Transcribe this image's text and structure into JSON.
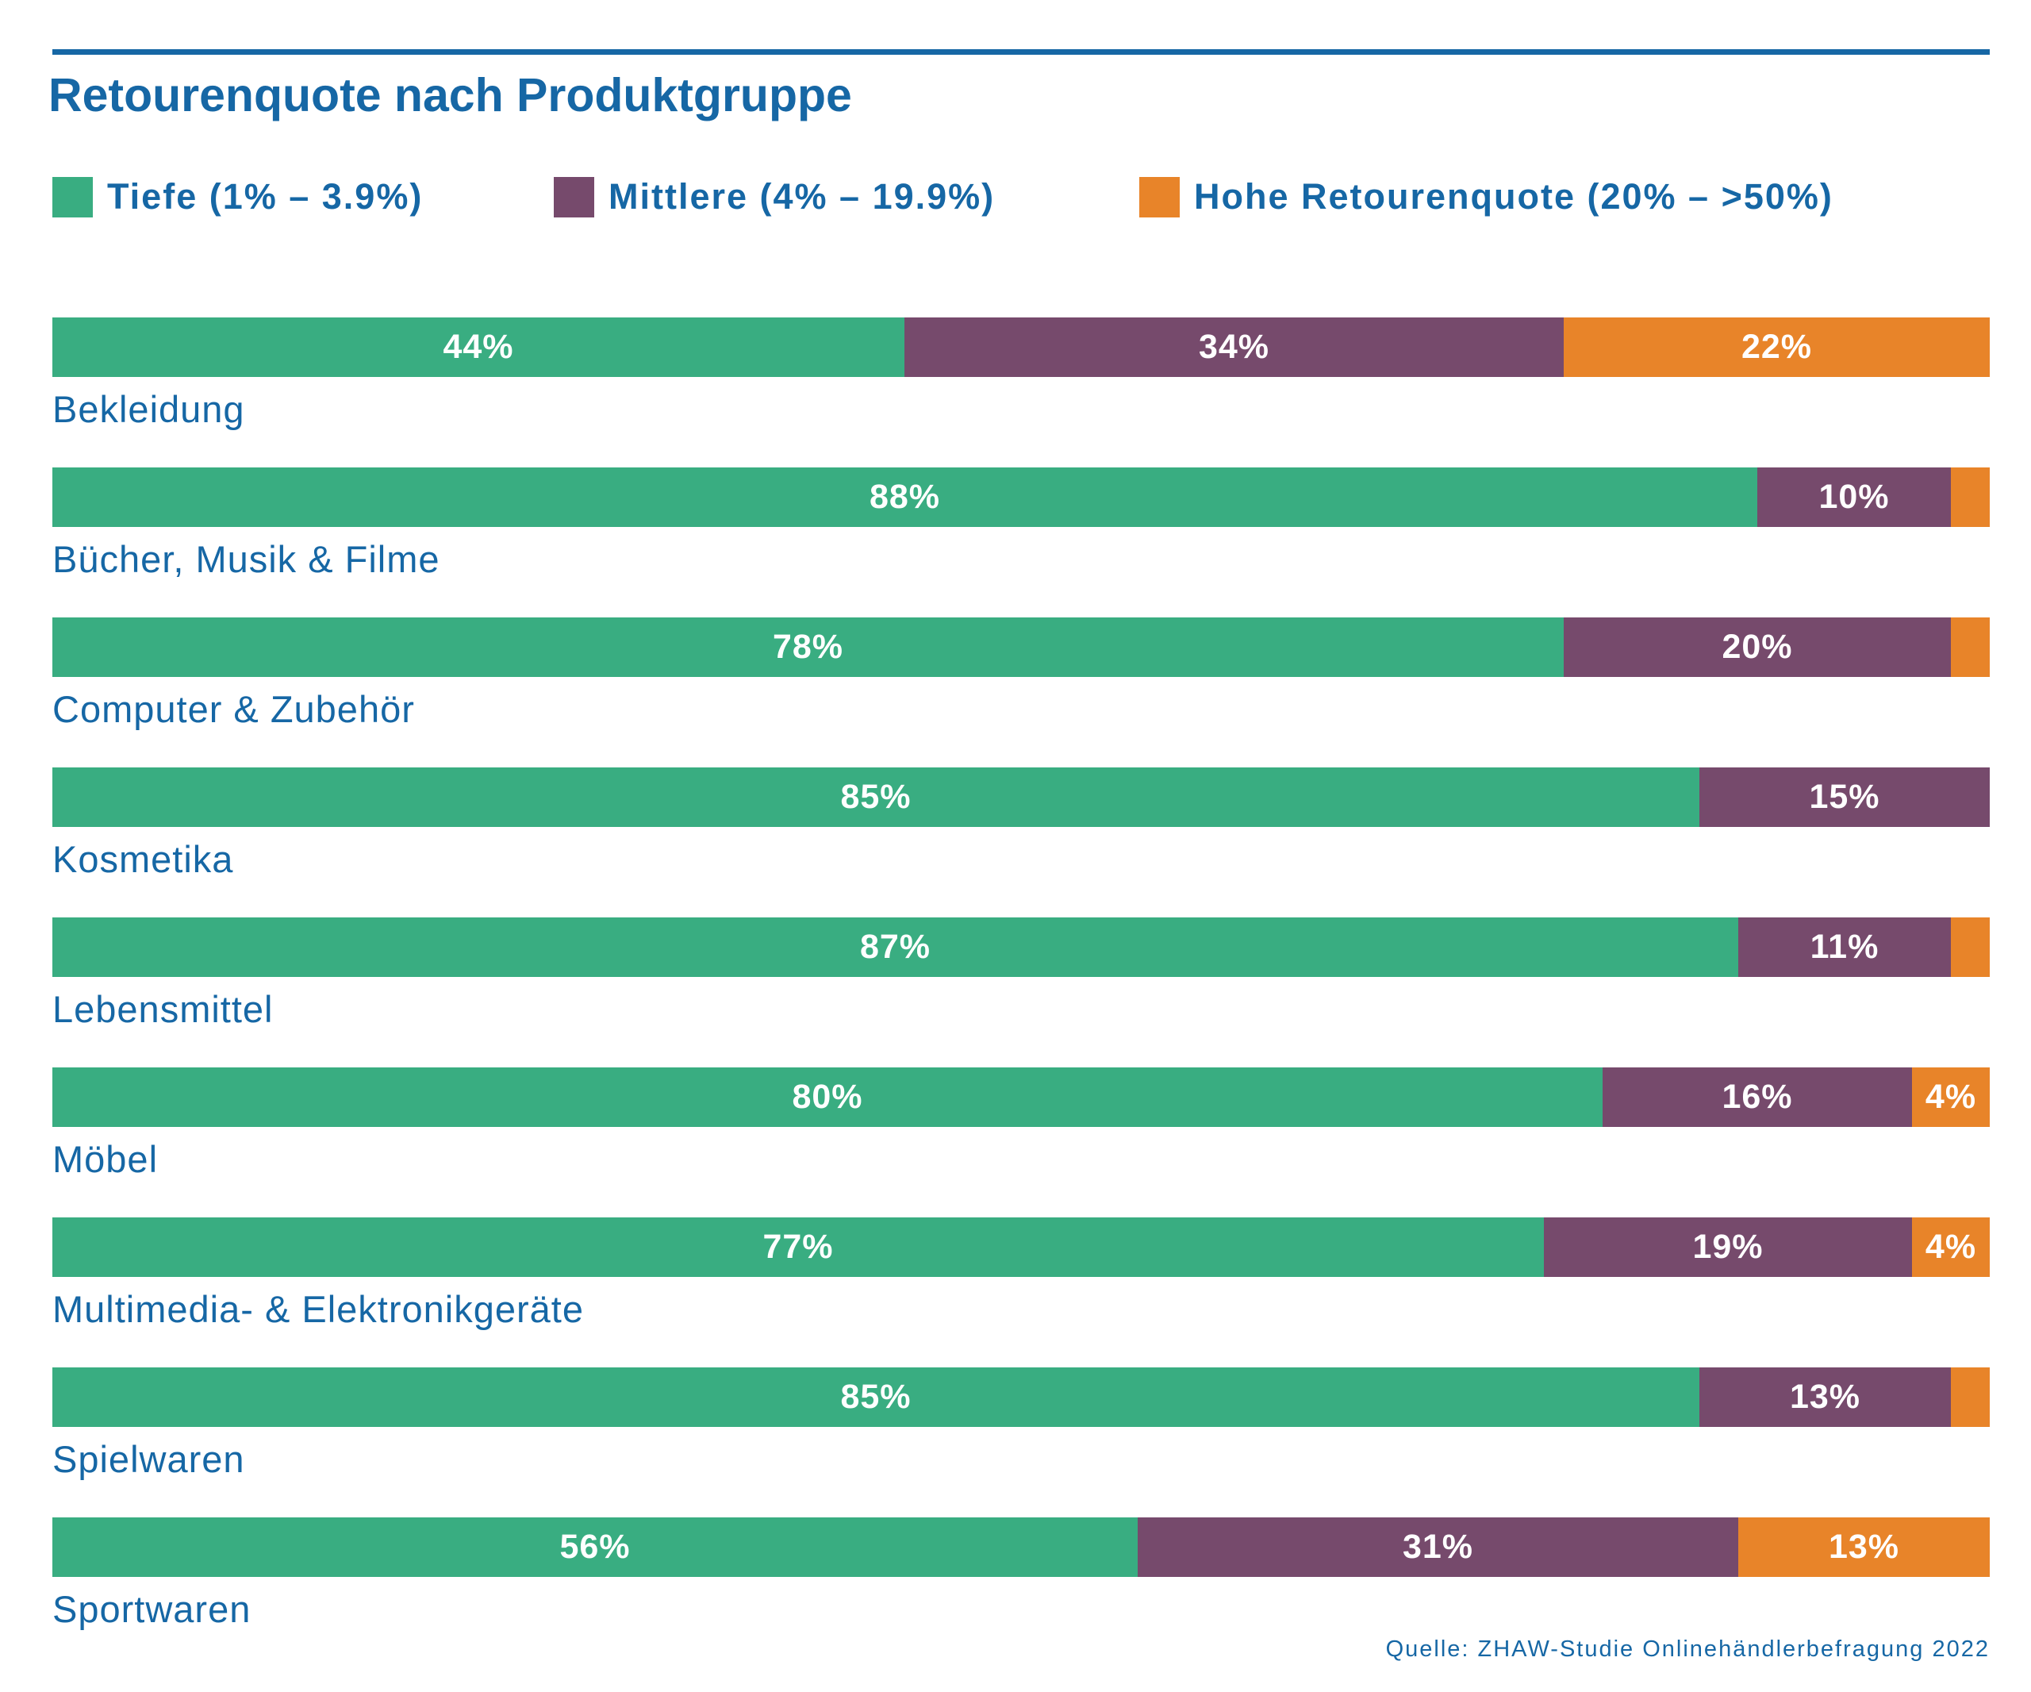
{
  "chart_data": {
    "type": "bar",
    "orientation": "horizontal",
    "stacked": true,
    "title": "Retourenquote nach Produktgruppe",
    "categories": [
      "Bekleidung",
      "Bücher, Musik & Filme",
      "Computer & Zubehör",
      "Kosmetika",
      "Lebensmittel",
      "Möbel",
      "Multimedia- & Elektronikgeräte",
      "Spielwaren",
      "Sportwaren"
    ],
    "series": [
      {
        "name": "Tiefe (1% – 3.9%)",
        "color": "#39ad81",
        "values": [
          44,
          88,
          78,
          85,
          87,
          80,
          77,
          85,
          56
        ],
        "labels": [
          "44%",
          "88%",
          "78%",
          "85%",
          "87%",
          "80%",
          "77%",
          "85%",
          "56%"
        ]
      },
      {
        "name": "Mittlere (4% – 19.9%)",
        "color": "#764a6c",
        "values": [
          34,
          10,
          20,
          15,
          11,
          16,
          19,
          13,
          31
        ],
        "labels": [
          "34%",
          "10%",
          "20%",
          "15%",
          "11%",
          "16%",
          "19%",
          "13%",
          "31%"
        ]
      },
      {
        "name": "Hohe Retourenquote (20% – >50%)",
        "color": "#e88429",
        "values": [
          22,
          2,
          2,
          0,
          2,
          4,
          4,
          2,
          13
        ],
        "labels": [
          "22%",
          "",
          "",
          "",
          "",
          "4%",
          "4%",
          "",
          "13%"
        ]
      }
    ],
    "xlim": [
      0,
      100
    ],
    "grid": false,
    "legend_position": "top",
    "source": "Quelle: ZHAW-Studie Onlinehändlerbefragung 2022"
  }
}
